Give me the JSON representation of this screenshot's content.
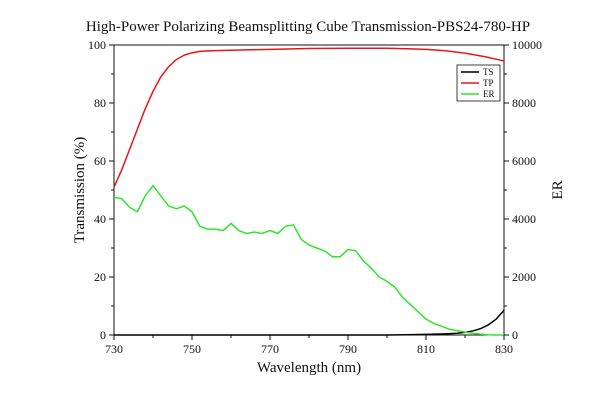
{
  "chart_data": {
    "type": "line",
    "title": "High-Power Polarizing Beamsplitting Cube Transmission-PBS24-780-HP",
    "xlabel": "Wavelength (nm)",
    "ylabel": "Transmission (%)",
    "y2label": "ER",
    "xlim": [
      730,
      830
    ],
    "ylim": [
      0,
      100
    ],
    "y2lim": [
      0,
      10000
    ],
    "xticks": [
      730,
      750,
      770,
      790,
      810,
      830
    ],
    "yticks": [
      0,
      20,
      40,
      60,
      80,
      100
    ],
    "y2ticks": [
      0,
      2000,
      4000,
      6000,
      8000,
      10000
    ],
    "grid": false,
    "legend_position": "top-right",
    "series": [
      {
        "name": "TS",
        "axis": "left",
        "color": "#000000",
        "x": [
          730,
          740,
          750,
          760,
          770,
          780,
          790,
          800,
          805,
          810,
          815,
          818,
          820,
          822,
          824,
          826,
          828,
          830
        ],
        "y": [
          0,
          0,
          0,
          0,
          0,
          0,
          0,
          0,
          0.1,
          0.2,
          0.4,
          0.6,
          0.9,
          1.4,
          2.2,
          3.5,
          5.5,
          8.5
        ]
      },
      {
        "name": "TP",
        "axis": "left",
        "color": "#e8161b",
        "x": [
          730,
          732,
          734,
          736,
          738,
          740,
          742,
          744,
          746,
          748,
          750,
          752,
          755,
          760,
          770,
          780,
          790,
          800,
          805,
          810,
          815,
          820,
          825,
          830
        ],
        "y": [
          51,
          57,
          64,
          71,
          78,
          84,
          89,
          92.5,
          95,
          96.5,
          97.3,
          97.8,
          98.0,
          98.2,
          98.5,
          98.8,
          98.9,
          98.9,
          98.7,
          98.5,
          98.0,
          97.2,
          96.0,
          94.5
        ]
      },
      {
        "name": "ER",
        "axis": "right",
        "color": "#2ee52e",
        "x": [
          730,
          732,
          734,
          736,
          738,
          740,
          742,
          744,
          746,
          748,
          750,
          752,
          754,
          756,
          758,
          760,
          762,
          764,
          766,
          768,
          770,
          772,
          774,
          776,
          778,
          780,
          782,
          784,
          786,
          788,
          790,
          792,
          794,
          796,
          798,
          800,
          802,
          804,
          806,
          808,
          810,
          812,
          814,
          816,
          818,
          820,
          822,
          824,
          826,
          828,
          830
        ],
        "y": [
          4750,
          4700,
          4400,
          4250,
          4800,
          5150,
          4800,
          4450,
          4350,
          4450,
          4250,
          3750,
          3650,
          3650,
          3600,
          3850,
          3600,
          3500,
          3550,
          3500,
          3600,
          3500,
          3750,
          3800,
          3300,
          3100,
          3000,
          2900,
          2700,
          2700,
          2950,
          2900,
          2550,
          2300,
          2000,
          1850,
          1650,
          1300,
          1050,
          800,
          550,
          400,
          300,
          200,
          150,
          100,
          60,
          30,
          10,
          0,
          0
        ]
      }
    ]
  }
}
